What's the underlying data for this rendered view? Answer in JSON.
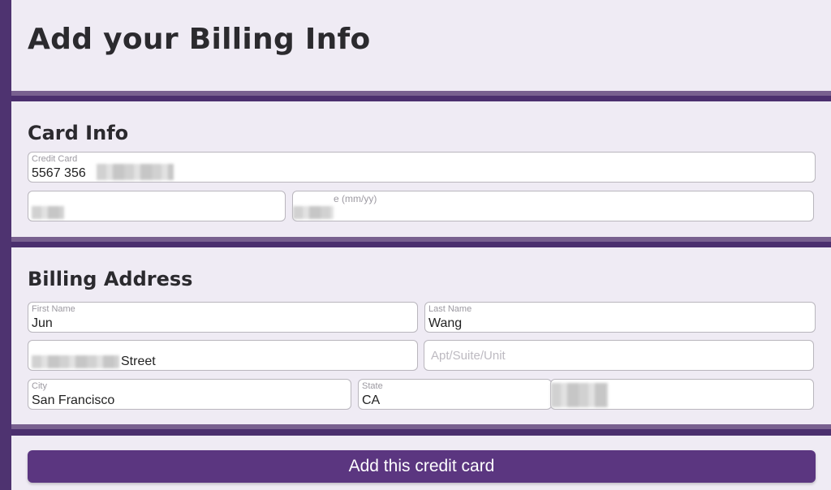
{
  "header": {
    "title": "Add your Billing Info"
  },
  "card_info": {
    "title": "Card Info",
    "credit_card": {
      "label": "Credit Card",
      "value": "5567 356"
    },
    "expiration": {
      "label": "e (mm/yy)"
    }
  },
  "billing_address": {
    "title": "Billing Address",
    "first_name": {
      "label": "First Name",
      "value": "Jun"
    },
    "last_name": {
      "label": "Last Name",
      "value": "Wang"
    },
    "street": {
      "value": "Street"
    },
    "apt": {
      "placeholder": "Apt/Suite/Unit"
    },
    "city": {
      "label": "City",
      "value": "San Francisco"
    },
    "state": {
      "label": "State",
      "value": "CA"
    }
  },
  "submit": {
    "label": "Add this credit card"
  },
  "colors": {
    "accent": "#5b3680",
    "panel": "#efebf4",
    "band": "#4b2f6e"
  }
}
